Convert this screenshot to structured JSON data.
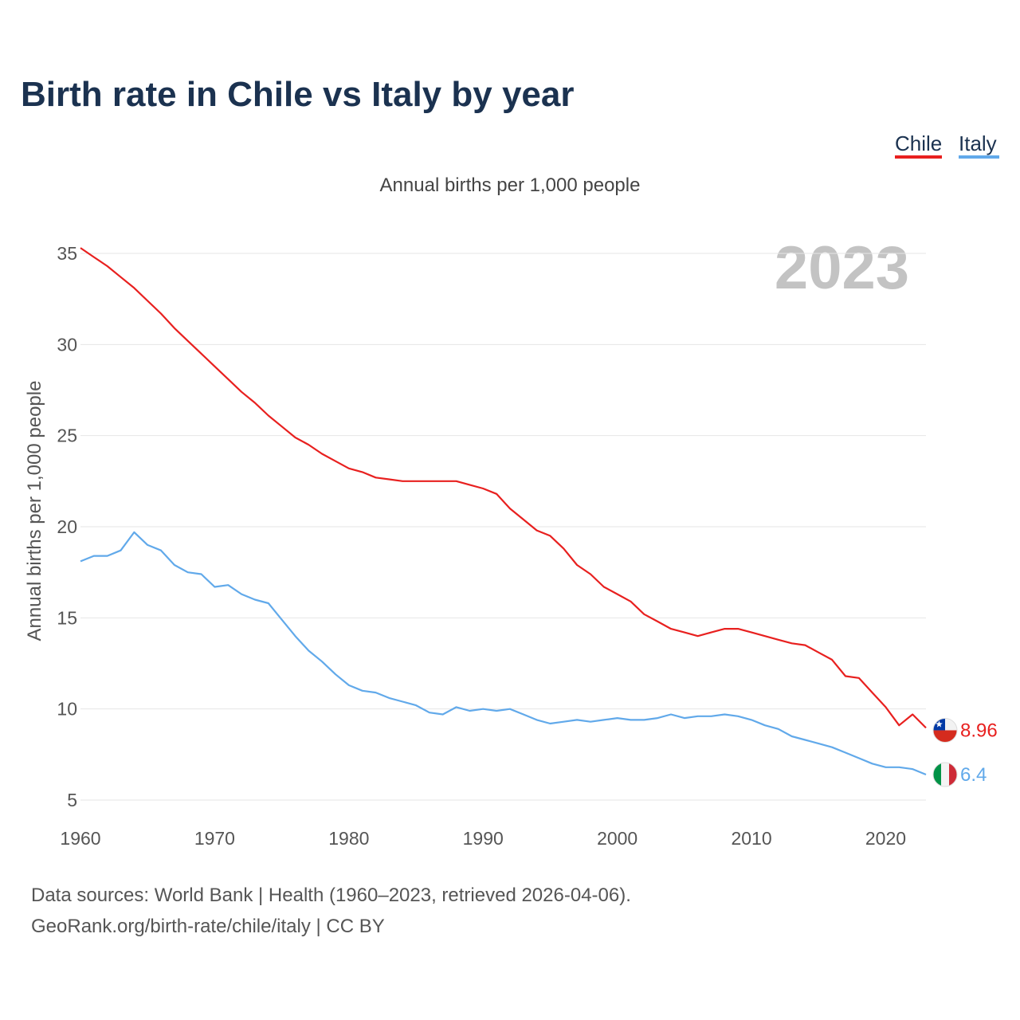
{
  "title": "Birth rate in Chile vs Italy by year",
  "legend": [
    {
      "label": "Chile",
      "color": "#e8201f"
    },
    {
      "label": "Italy",
      "color": "#61a9ea"
    }
  ],
  "subtitle": "Annual births per 1,000 people",
  "year_watermark": "2023",
  "footer": {
    "line1": "Data sources: World Bank | Health (1960–2023, retrieved 2026-04-06).",
    "line2": "GeoRank.org/birth-rate/chile/italy | CC BY"
  },
  "chart_data": {
    "type": "line",
    "title": "Birth rate in Chile vs Italy by year",
    "ylabel": "Annual births per 1,000 people",
    "xlabel": "",
    "xlim": [
      1960,
      2023
    ],
    "ylim": [
      5,
      35
    ],
    "x_ticks": [
      1960,
      1970,
      1980,
      1990,
      2000,
      2010,
      2020
    ],
    "y_ticks": [
      5,
      10,
      15,
      20,
      25,
      30,
      35
    ],
    "grid": true,
    "x": [
      1960,
      1961,
      1962,
      1963,
      1964,
      1965,
      1966,
      1967,
      1968,
      1969,
      1970,
      1971,
      1972,
      1973,
      1974,
      1975,
      1976,
      1977,
      1978,
      1979,
      1980,
      1981,
      1982,
      1983,
      1984,
      1985,
      1986,
      1987,
      1988,
      1989,
      1990,
      1991,
      1992,
      1993,
      1994,
      1995,
      1996,
      1997,
      1998,
      1999,
      2000,
      2001,
      2002,
      2003,
      2004,
      2005,
      2006,
      2007,
      2008,
      2009,
      2010,
      2011,
      2012,
      2013,
      2014,
      2015,
      2016,
      2017,
      2018,
      2019,
      2020,
      2021,
      2022,
      2023
    ],
    "series": [
      {
        "name": "Chile",
        "color": "#e8201f",
        "end_label": "8.96",
        "flag": "chile-flag",
        "values": [
          35.3,
          34.8,
          34.3,
          33.7,
          33.1,
          32.4,
          31.7,
          30.9,
          30.2,
          29.5,
          28.8,
          28.1,
          27.4,
          26.8,
          26.1,
          25.5,
          24.9,
          24.5,
          24.0,
          23.6,
          23.2,
          23.0,
          22.7,
          22.6,
          22.5,
          22.5,
          22.5,
          22.5,
          22.5,
          22.3,
          22.1,
          21.8,
          21.0,
          20.4,
          19.8,
          19.5,
          18.8,
          17.9,
          17.4,
          16.7,
          16.3,
          15.9,
          15.2,
          14.8,
          14.4,
          14.2,
          14.0,
          14.2,
          14.4,
          14.4,
          14.2,
          14.0,
          13.8,
          13.6,
          13.5,
          13.1,
          12.7,
          11.8,
          11.7,
          10.9,
          10.1,
          9.1,
          9.7,
          8.96
        ]
      },
      {
        "name": "Italy",
        "color": "#61a9ea",
        "end_label": "6.4",
        "flag": "italy-flag",
        "values": [
          18.1,
          18.4,
          18.4,
          18.7,
          19.7,
          19.0,
          18.7,
          17.9,
          17.5,
          17.4,
          16.7,
          16.8,
          16.3,
          16.0,
          15.8,
          14.9,
          14.0,
          13.2,
          12.6,
          11.9,
          11.3,
          11.0,
          10.9,
          10.6,
          10.4,
          10.2,
          9.8,
          9.7,
          10.1,
          9.9,
          10.0,
          9.9,
          10.0,
          9.7,
          9.4,
          9.2,
          9.3,
          9.4,
          9.3,
          9.4,
          9.5,
          9.4,
          9.4,
          9.5,
          9.7,
          9.5,
          9.6,
          9.6,
          9.7,
          9.6,
          9.4,
          9.1,
          8.9,
          8.5,
          8.3,
          8.1,
          7.9,
          7.6,
          7.3,
          7.0,
          6.8,
          6.8,
          6.7,
          6.4
        ]
      }
    ]
  }
}
